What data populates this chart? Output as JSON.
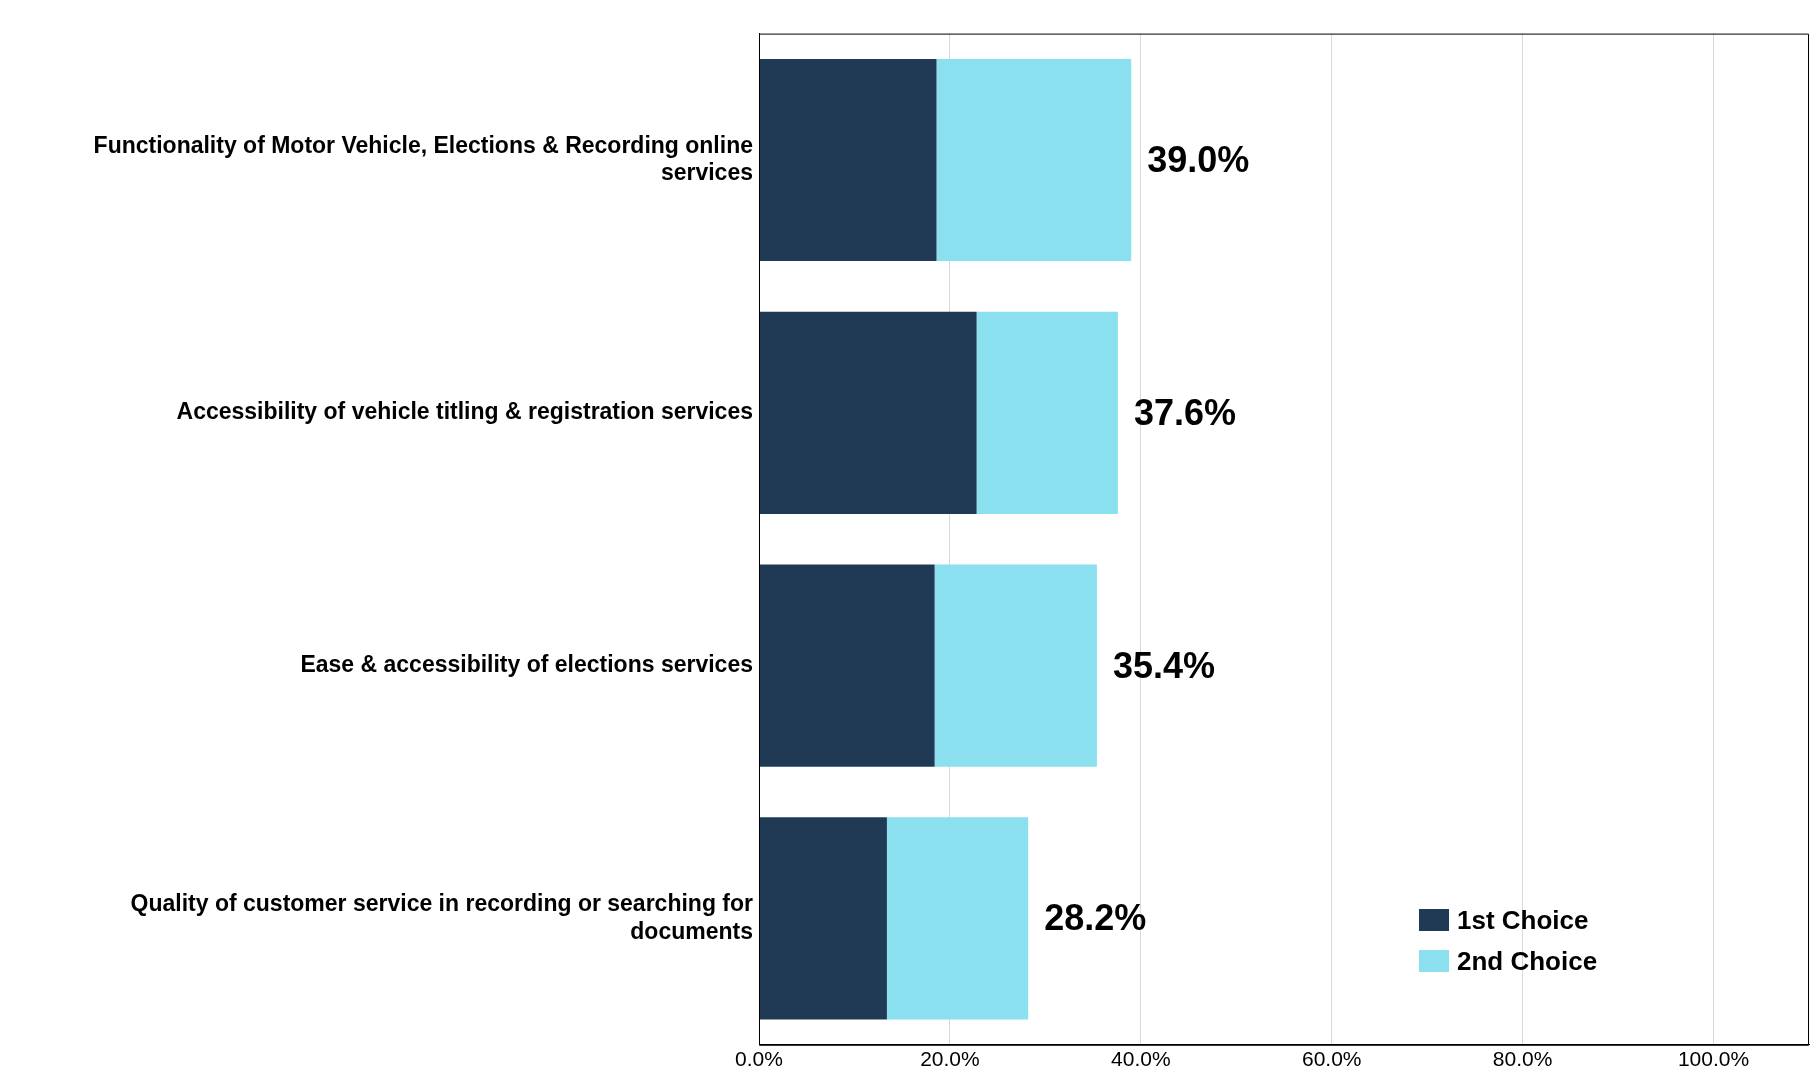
{
  "chart_data": {
    "type": "bar",
    "orientation": "horizontal",
    "stacked": true,
    "categories": [
      "Functionality of Motor Vehicle, Elections & Recording online services",
      "Accessibility of vehicle titling & registration services",
      "Ease & accessibility of elections services",
      "Quality of customer service in recording or searching for documents"
    ],
    "series": [
      {
        "name": "1st Choice",
        "color": "#203a55",
        "values": [
          18.6,
          22.8,
          18.4,
          13.4
        ]
      },
      {
        "name": "2nd Choice",
        "color": "#8be0f0",
        "values": [
          20.4,
          14.8,
          17.0,
          14.8
        ]
      }
    ],
    "totals": [
      "39.0%",
      "37.6%",
      "35.4%",
      "28.2%"
    ],
    "xlim": [
      0,
      110
    ],
    "xticks": [
      {
        "value": 0,
        "label": "0.0%"
      },
      {
        "value": 20,
        "label": "20.0%"
      },
      {
        "value": 40,
        "label": "40.0%"
      },
      {
        "value": 60,
        "label": "60.0%"
      },
      {
        "value": 80,
        "label": "80.0%"
      },
      {
        "value": 100,
        "label": "100.0%"
      }
    ],
    "grid": "x",
    "legend": "bottom right"
  }
}
